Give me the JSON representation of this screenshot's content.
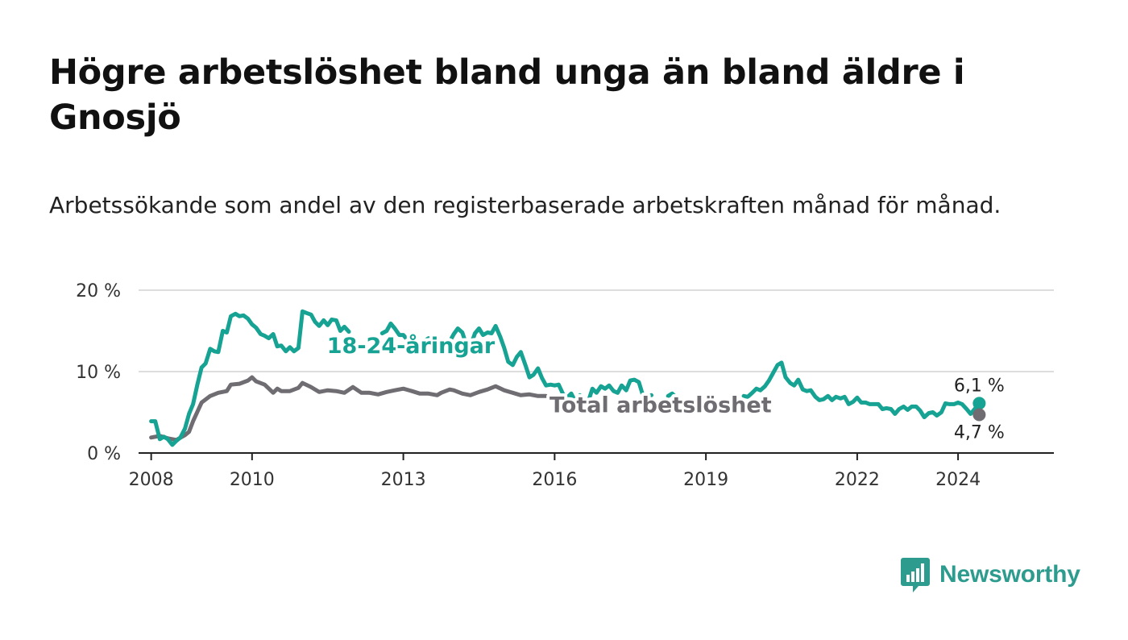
{
  "title": "Högre arbetslöshet bland unga än bland äldre i Gnosjö",
  "subtitle": "Arbetssökande som andel av den registerbaserade arbetskraften månad för månad.",
  "brand": {
    "name": "Newsworthy",
    "color": "#2d9c8e"
  },
  "colors": {
    "youth": "#16a393",
    "total": "#6f6c72",
    "grid": "#dddddd",
    "axis": "#222222"
  },
  "chart_data": {
    "type": "line",
    "title": "Högre arbetslöshet bland unga än bland äldre i Gnosjö",
    "xlabel": "",
    "ylabel": "",
    "xlim": [
      2007.75,
      2025.9
    ],
    "ylim": [
      0,
      20
    ],
    "x_ticks": [
      2008,
      2010,
      2013,
      2016,
      2019,
      2022,
      2024
    ],
    "x_tick_labels": [
      "2008",
      "2010",
      "2013",
      "2016",
      "2019",
      "2022",
      "2024"
    ],
    "y_ticks": [
      0,
      10,
      20
    ],
    "y_tick_labels": [
      "0 %",
      "10 %",
      "20 %"
    ],
    "grid": true,
    "legend": "inline labels",
    "series": [
      {
        "name": "18-24-åringar",
        "label": "18-24-åringar",
        "end_label": "6,1 %",
        "end_value": 6.1,
        "points": [
          [
            2008.0,
            3.9
          ],
          [
            2008.08,
            3.9
          ],
          [
            2008.17,
            1.7
          ],
          [
            2008.25,
            2.0
          ],
          [
            2008.33,
            1.7
          ],
          [
            2008.42,
            1.0
          ],
          [
            2008.5,
            1.5
          ],
          [
            2008.58,
            1.9
          ],
          [
            2008.67,
            3.0
          ],
          [
            2008.75,
            4.8
          ],
          [
            2008.83,
            6.0
          ],
          [
            2008.92,
            8.5
          ],
          [
            2009.0,
            10.5
          ],
          [
            2009.08,
            11.0
          ],
          [
            2009.17,
            12.8
          ],
          [
            2009.25,
            12.5
          ],
          [
            2009.33,
            12.4
          ],
          [
            2009.42,
            15.0
          ],
          [
            2009.5,
            14.8
          ],
          [
            2009.58,
            16.8
          ],
          [
            2009.67,
            17.1
          ],
          [
            2009.75,
            16.8
          ],
          [
            2009.83,
            16.9
          ],
          [
            2009.92,
            16.5
          ],
          [
            2010.0,
            15.8
          ],
          [
            2010.08,
            15.4
          ],
          [
            2010.17,
            14.6
          ],
          [
            2010.25,
            14.4
          ],
          [
            2010.33,
            14.1
          ],
          [
            2010.42,
            14.6
          ],
          [
            2010.5,
            13.1
          ],
          [
            2010.58,
            13.2
          ],
          [
            2010.67,
            12.5
          ],
          [
            2010.75,
            13.0
          ],
          [
            2010.83,
            12.5
          ],
          [
            2010.92,
            12.9
          ],
          [
            2011.0,
            17.4
          ],
          [
            2011.08,
            17.2
          ],
          [
            2011.17,
            17.0
          ],
          [
            2011.25,
            16.1
          ],
          [
            2011.33,
            15.6
          ],
          [
            2011.42,
            16.3
          ],
          [
            2011.5,
            15.7
          ],
          [
            2011.58,
            16.4
          ],
          [
            2011.67,
            16.3
          ],
          [
            2011.75,
            15.0
          ],
          [
            2011.83,
            15.5
          ],
          [
            2011.92,
            14.9
          ],
          null,
          [
            2012.58,
            14.7
          ],
          [
            2012.67,
            15.0
          ],
          [
            2012.75,
            15.9
          ],
          [
            2012.83,
            15.3
          ],
          [
            2012.92,
            14.5
          ],
          [
            2013.0,
            14.5
          ],
          [
            2013.08,
            13.9
          ],
          [
            2013.17,
            13.0
          ],
          null,
          [
            2013.42,
            13.8
          ],
          [
            2013.5,
            14.1
          ],
          null,
          [
            2013.92,
            13.7
          ],
          [
            2014.0,
            14.6
          ],
          [
            2014.08,
            15.3
          ],
          [
            2014.17,
            14.8
          ],
          [
            2014.25,
            13.3
          ],
          [
            2014.33,
            13.1
          ],
          [
            2014.42,
            14.7
          ],
          [
            2014.5,
            15.3
          ],
          [
            2014.58,
            14.5
          ],
          [
            2014.67,
            14.8
          ],
          [
            2014.75,
            14.7
          ],
          [
            2014.83,
            15.6
          ],
          [
            2014.92,
            14.3
          ],
          [
            2015.0,
            12.9
          ],
          [
            2015.08,
            11.2
          ],
          [
            2015.17,
            10.8
          ],
          [
            2015.25,
            11.8
          ],
          [
            2015.33,
            12.4
          ],
          [
            2015.42,
            10.8
          ],
          [
            2015.5,
            9.3
          ],
          [
            2015.58,
            9.6
          ],
          [
            2015.67,
            10.4
          ],
          [
            2015.75,
            9.2
          ],
          [
            2015.83,
            8.3
          ],
          [
            2015.92,
            8.4
          ],
          [
            2016.0,
            8.3
          ],
          [
            2016.08,
            8.4
          ],
          [
            2016.17,
            7.2
          ],
          [
            2016.25,
            6.8
          ],
          [
            2016.33,
            7.3
          ],
          [
            2016.42,
            6.2
          ],
          [
            2016.5,
            7.1
          ],
          [
            2016.58,
            6.3
          ],
          [
            2016.67,
            6.4
          ],
          [
            2016.75,
            7.9
          ],
          [
            2016.83,
            7.4
          ],
          [
            2016.92,
            8.2
          ],
          [
            2017.0,
            7.9
          ],
          [
            2017.08,
            8.3
          ],
          [
            2017.17,
            7.6
          ],
          [
            2017.25,
            7.4
          ],
          [
            2017.33,
            8.3
          ],
          [
            2017.42,
            7.7
          ],
          [
            2017.5,
            8.9
          ],
          [
            2017.58,
            9.0
          ],
          [
            2017.67,
            8.7
          ],
          [
            2017.75,
            7.1
          ],
          [
            2017.83,
            7.0
          ],
          [
            2017.92,
            7.1
          ],
          null,
          [
            2018.25,
            7.0
          ],
          [
            2018.33,
            7.3
          ],
          [
            2018.42,
            6.8
          ],
          null,
          [
            2019.75,
            7.0
          ],
          [
            2019.83,
            6.9
          ],
          [
            2019.92,
            7.4
          ],
          [
            2020.0,
            7.9
          ],
          [
            2020.08,
            7.7
          ],
          [
            2020.17,
            8.2
          ],
          [
            2020.25,
            8.9
          ],
          [
            2020.33,
            9.8
          ],
          [
            2020.42,
            10.8
          ],
          [
            2020.5,
            11.1
          ],
          [
            2020.58,
            9.3
          ],
          [
            2020.67,
            8.6
          ],
          [
            2020.75,
            8.3
          ],
          [
            2020.83,
            9.0
          ],
          [
            2020.92,
            7.8
          ],
          [
            2021.0,
            7.6
          ],
          [
            2021.08,
            7.7
          ],
          [
            2021.17,
            6.9
          ],
          [
            2021.25,
            6.5
          ],
          [
            2021.33,
            6.6
          ],
          [
            2021.42,
            7.0
          ],
          [
            2021.5,
            6.5
          ],
          [
            2021.58,
            6.9
          ],
          [
            2021.67,
            6.7
          ],
          [
            2021.75,
            6.9
          ],
          [
            2021.83,
            6.0
          ],
          [
            2021.92,
            6.3
          ],
          [
            2022.0,
            6.8
          ],
          [
            2022.08,
            6.2
          ],
          [
            2022.17,
            6.2
          ],
          [
            2022.25,
            6.0
          ],
          [
            2022.33,
            6.0
          ],
          [
            2022.42,
            6.0
          ],
          [
            2022.5,
            5.4
          ],
          [
            2022.58,
            5.5
          ],
          [
            2022.67,
            5.4
          ],
          [
            2022.75,
            4.8
          ],
          [
            2022.83,
            5.4
          ],
          [
            2022.92,
            5.7
          ],
          [
            2023.0,
            5.3
          ],
          [
            2023.08,
            5.7
          ],
          [
            2023.17,
            5.7
          ],
          [
            2023.25,
            5.2
          ],
          [
            2023.33,
            4.4
          ],
          [
            2023.42,
            4.9
          ],
          [
            2023.5,
            5.0
          ],
          [
            2023.58,
            4.6
          ],
          [
            2023.67,
            5.0
          ],
          [
            2023.75,
            6.1
          ],
          [
            2023.83,
            6.0
          ],
          [
            2023.92,
            6.0
          ],
          [
            2024.0,
            6.2
          ],
          [
            2024.08,
            6.0
          ],
          [
            2024.17,
            5.4
          ],
          [
            2024.25,
            4.8
          ],
          [
            2024.33,
            5.4
          ],
          [
            2024.42,
            6.1
          ]
        ]
      },
      {
        "name": "Total arbetslöshet",
        "label": "Total arbetslöshet",
        "end_label": "4,7 %",
        "end_value": 4.7,
        "points": [
          [
            2008.0,
            1.9
          ],
          [
            2008.17,
            2.1
          ],
          [
            2008.33,
            1.8
          ],
          [
            2008.5,
            1.6
          ],
          [
            2008.67,
            2.2
          ],
          [
            2008.75,
            2.6
          ],
          [
            2008.83,
            3.9
          ],
          [
            2009.0,
            6.2
          ],
          [
            2009.17,
            7.0
          ],
          [
            2009.33,
            7.4
          ],
          [
            2009.5,
            7.6
          ],
          [
            2009.58,
            8.4
          ],
          [
            2009.75,
            8.5
          ],
          [
            2009.92,
            8.9
          ],
          [
            2010.0,
            9.3
          ],
          [
            2010.08,
            8.8
          ],
          [
            2010.25,
            8.4
          ],
          [
            2010.42,
            7.4
          ],
          [
            2010.5,
            7.9
          ],
          [
            2010.58,
            7.6
          ],
          [
            2010.75,
            7.6
          ],
          [
            2010.92,
            8.0
          ],
          [
            2011.0,
            8.6
          ],
          [
            2011.17,
            8.1
          ],
          [
            2011.33,
            7.5
          ],
          [
            2011.5,
            7.7
          ],
          [
            2011.67,
            7.6
          ],
          [
            2011.83,
            7.4
          ],
          [
            2012.0,
            8.1
          ],
          [
            2012.17,
            7.4
          ],
          [
            2012.33,
            7.4
          ],
          [
            2012.5,
            7.2
          ],
          [
            2012.67,
            7.5
          ],
          [
            2012.83,
            7.7
          ],
          [
            2013.0,
            7.9
          ],
          [
            2013.17,
            7.6
          ],
          [
            2013.33,
            7.3
          ],
          [
            2013.5,
            7.3
          ],
          [
            2013.67,
            7.1
          ],
          [
            2013.75,
            7.4
          ],
          [
            2013.92,
            7.8
          ],
          [
            2014.0,
            7.7
          ],
          [
            2014.17,
            7.3
          ],
          [
            2014.33,
            7.1
          ],
          [
            2014.5,
            7.5
          ],
          [
            2014.67,
            7.8
          ],
          [
            2014.83,
            8.2
          ],
          [
            2015.0,
            7.7
          ],
          [
            2015.17,
            7.4
          ],
          [
            2015.33,
            7.1
          ],
          [
            2015.5,
            7.2
          ],
          [
            2015.67,
            7.0
          ],
          [
            2015.83,
            7.0
          ],
          [
            2016.0,
            6.8
          ],
          [
            2016.17,
            6.5
          ],
          [
            2016.33,
            6.2
          ],
          [
            2016.42,
            6.4
          ],
          [
            2016.58,
            6.6
          ],
          [
            2016.75,
            6.5
          ],
          [
            2016.92,
            6.3
          ]
        ]
      }
    ]
  }
}
